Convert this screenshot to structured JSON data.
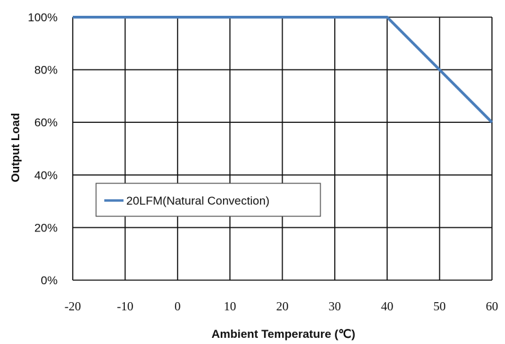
{
  "chart_data": {
    "type": "line",
    "xlabel": "Ambient Temperature (℃)",
    "ylabel": "Output Load",
    "xlim": [
      -20,
      60
    ],
    "ylim": [
      0,
      100
    ],
    "x_ticks": [
      "-20",
      "-10",
      "0",
      "10",
      "20",
      "30",
      "40",
      "50",
      "60"
    ],
    "y_ticks": [
      "0%",
      "20%",
      "40%",
      "60%",
      "80%",
      "100%"
    ],
    "grid": true,
    "legend_position": "left",
    "series": [
      {
        "name": "20LFM(Natural Convection)",
        "color": "#4a7ebb",
        "x": [
          -20,
          40,
          50,
          60
        ],
        "y": [
          100,
          100,
          80,
          60
        ]
      }
    ]
  }
}
